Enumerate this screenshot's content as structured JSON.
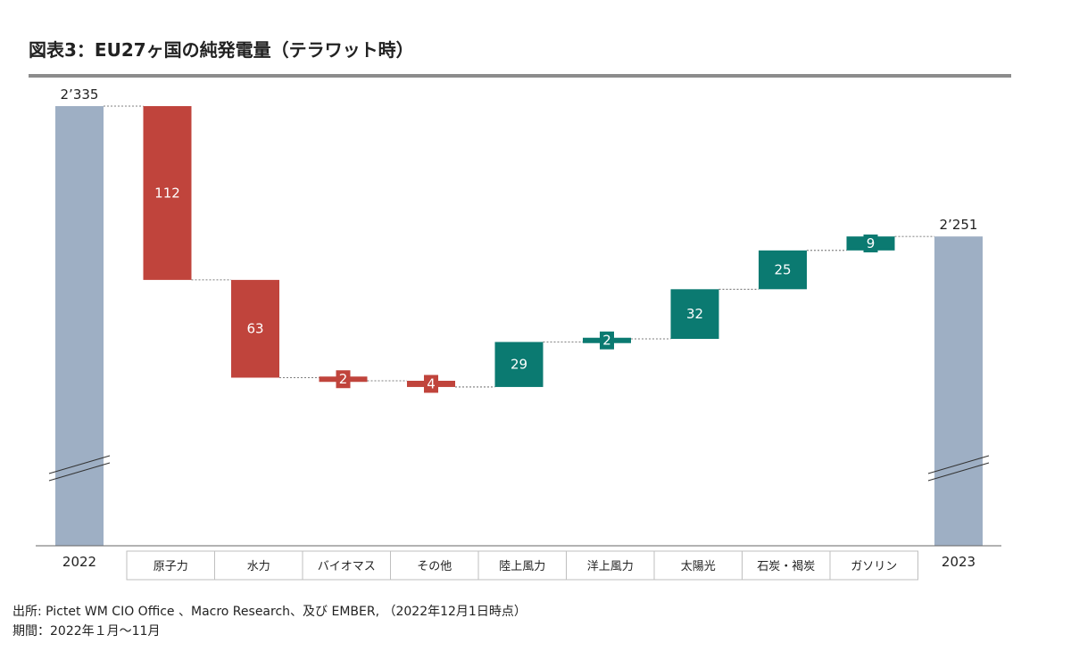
{
  "title": "図表3：EU27ヶ国の純発電量（テラワット時）",
  "source": "出所: Pictet WM CIO Office 、Macro Research、及び EMBER, （2022年12月1日時点）",
  "period": "期間：2022年１月～11月",
  "chart_data": {
    "type": "waterfall",
    "title": "EU27ヶ国の純発電量（テラワット時）",
    "unit": "テラワット時",
    "start": {
      "label": "2022",
      "value": 2335,
      "display": "2’335"
    },
    "end": {
      "label": "2023",
      "value": 2251,
      "display": "2’251"
    },
    "steps": [
      {
        "category": "原子力",
        "change": -112,
        "display": "112"
      },
      {
        "category": "水力",
        "change": -63,
        "display": "63"
      },
      {
        "category": "バイオマス",
        "change": -2,
        "display": "2"
      },
      {
        "category": "その他",
        "change": -4,
        "display": "4"
      },
      {
        "category": "陸上風力",
        "change": 29,
        "display": "29"
      },
      {
        "category": "洋上風力",
        "change": 2,
        "display": "2"
      },
      {
        "category": "太陽光",
        "change": 32,
        "display": "32"
      },
      {
        "category": "石炭・褐炭",
        "change": 25,
        "display": "25"
      },
      {
        "category": "ガソリン",
        "change": 9,
        "display": "9"
      }
    ],
    "axis_break": true,
    "colors": {
      "total": "#9eafc4",
      "decrease": "#c0443c",
      "increase": "#0b7a71",
      "connector": "#555555",
      "axis": "#666666",
      "category_box": "#bfbfbf"
    }
  }
}
